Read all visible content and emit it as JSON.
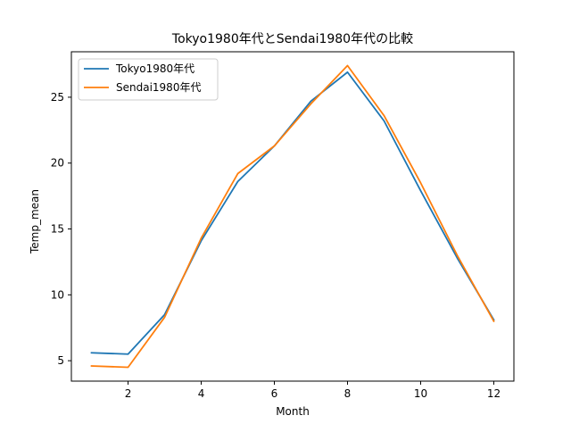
{
  "chart_data": {
    "type": "line",
    "title": "Tokyo1980年代とSendai1980年代の比較",
    "xlabel": "Month",
    "ylabel": "Temp_mean",
    "x": [
      1,
      2,
      3,
      4,
      5,
      6,
      7,
      8,
      9,
      10,
      11,
      12
    ],
    "xlim": [
      0.45,
      12.55
    ],
    "ylim": [
      3.45,
      28.45
    ],
    "xticks": [
      2,
      4,
      6,
      8,
      10,
      12
    ],
    "yticks": [
      5,
      10,
      15,
      20,
      25
    ],
    "grid": false,
    "legend_position": "upper left",
    "series": [
      {
        "name": "Tokyo1980年代",
        "color": "#1f77b4",
        "values": [
          5.6,
          5.5,
          8.5,
          14.1,
          18.6,
          21.3,
          24.7,
          26.9,
          23.2,
          17.9,
          12.8,
          8.1
        ]
      },
      {
        "name": "Sendai1980年代",
        "color": "#ff7f0e",
        "values": [
          4.6,
          4.5,
          8.3,
          14.3,
          19.2,
          21.3,
          24.5,
          27.4,
          23.6,
          18.5,
          13.0,
          8.0
        ]
      }
    ]
  }
}
